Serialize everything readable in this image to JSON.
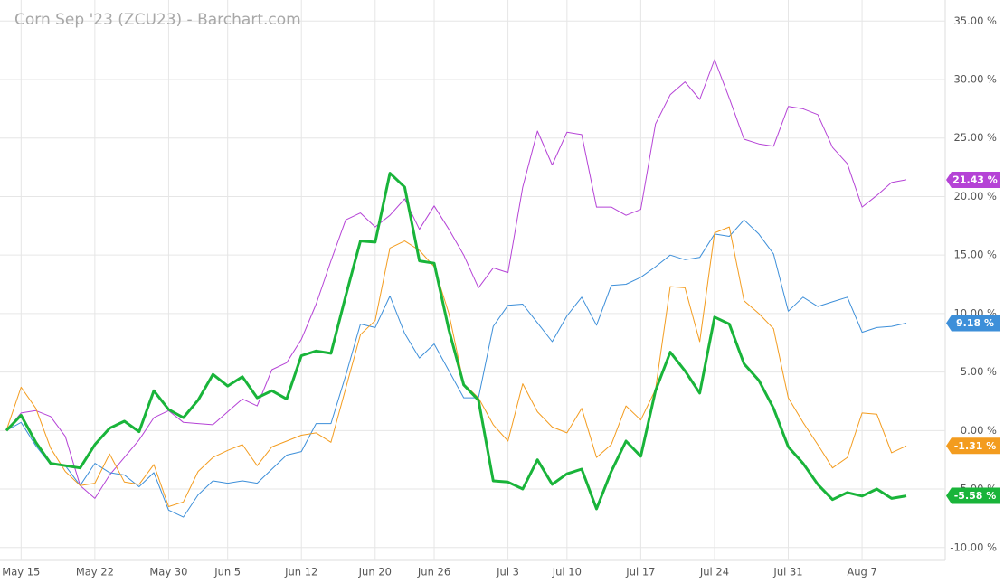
{
  "chart_data": {
    "type": "line",
    "title": "Corn Sep '23 (ZCU23) - Barchart.com",
    "categories": [
      null,
      "May 15",
      null,
      null,
      null,
      null,
      "May 22",
      null,
      null,
      null,
      null,
      "May 30",
      null,
      null,
      null,
      "Jun 5",
      null,
      null,
      null,
      null,
      "Jun 12",
      null,
      null,
      null,
      null,
      "Jun 20",
      null,
      null,
      null,
      "Jun 26",
      null,
      null,
      null,
      null,
      "Jul 3",
      null,
      null,
      null,
      "Jul 10",
      null,
      null,
      null,
      null,
      "Jul 17",
      null,
      null,
      null,
      null,
      "Jul 24",
      null,
      null,
      null,
      null,
      "Jul 31",
      null,
      null,
      null,
      null,
      "Aug 7",
      null,
      null,
      null
    ],
    "series": [
      {
        "color": "#b543d6",
        "line_width": 1,
        "values": [
          0,
          1.5,
          1.7,
          1.2,
          -0.5,
          -4.7,
          -5.8,
          -3.8,
          -2.3,
          -0.8,
          1.1,
          1.7,
          0.7,
          0.6,
          0.5,
          1.6,
          2.7,
          2.1,
          5.2,
          5.8,
          7.8,
          10.8,
          14.5,
          18.0,
          18.6,
          17.4,
          18.4,
          19.8,
          17.2,
          19.2,
          17.2,
          15.0,
          12.2,
          13.9,
          13.5,
          20.8,
          25.6,
          22.7,
          25.5,
          25.3,
          19.1,
          19.1,
          18.4,
          18.9,
          26.2,
          28.7,
          29.8,
          28.3,
          31.7,
          28.4,
          24.9,
          24.5,
          24.3,
          27.7,
          27.5,
          27.0,
          24.2,
          22.8,
          19.1,
          20.1,
          21.2,
          21.43
        ],
        "value_labels": [
          null,
          null,
          null,
          null,
          null,
          null,
          null,
          null,
          null,
          null,
          null,
          null,
          null,
          null,
          null,
          null,
          null,
          null,
          null,
          null,
          null,
          null,
          null,
          null,
          null,
          null,
          null,
          null,
          null,
          null,
          null,
          null,
          null,
          null,
          null,
          null,
          null,
          null,
          null,
          null,
          null,
          null,
          null,
          null,
          null,
          null,
          null,
          null,
          null,
          null,
          null,
          null,
          null,
          null,
          null,
          null,
          null,
          null,
          null,
          null,
          null,
          "21.43 %"
        ]
      },
      {
        "color": "#3d8fd9",
        "line_width": 1,
        "values": [
          0,
          0.7,
          -1.3,
          -2.9,
          -3.0,
          -4.7,
          -2.8,
          -3.6,
          -3.8,
          -4.8,
          -3.6,
          -6.8,
          -7.4,
          -5.5,
          -4.3,
          -4.5,
          -4.3,
          -4.5,
          -3.3,
          -2.1,
          -1.8,
          0.6,
          0.6,
          4.7,
          9.1,
          8.8,
          11.5,
          8.3,
          6.2,
          7.4,
          5.1,
          2.8,
          2.8,
          8.9,
          10.7,
          10.8,
          9.2,
          7.6,
          9.8,
          11.4,
          9.0,
          12.4,
          12.5,
          13.1,
          14.0,
          15.0,
          14.6,
          14.8,
          16.8,
          16.6,
          18.0,
          16.8,
          15.1,
          10.2,
          11.4,
          10.6,
          11.0,
          11.4,
          8.4,
          8.8,
          8.9,
          9.18
        ],
        "value_labels": [
          null,
          null,
          null,
          null,
          null,
          null,
          null,
          null,
          null,
          null,
          null,
          null,
          null,
          null,
          null,
          null,
          null,
          null,
          null,
          null,
          null,
          null,
          null,
          null,
          null,
          null,
          null,
          null,
          null,
          null,
          null,
          null,
          null,
          null,
          null,
          null,
          null,
          null,
          null,
          null,
          null,
          null,
          null,
          null,
          null,
          null,
          null,
          null,
          null,
          null,
          null,
          null,
          null,
          null,
          null,
          null,
          null,
          null,
          null,
          null,
          null,
          "9.18 %"
        ]
      },
      {
        "color": "#f39c1f",
        "line_width": 1,
        "values": [
          0,
          3.7,
          1.9,
          -1.5,
          -3.5,
          -4.7,
          -4.5,
          -2.0,
          -4.4,
          -4.6,
          -2.9,
          -6.5,
          -6.1,
          -3.5,
          -2.3,
          -1.7,
          -1.2,
          -3.0,
          -1.4,
          -0.9,
          -0.4,
          -0.2,
          -1.0,
          3.6,
          8.2,
          9.4,
          15.6,
          16.2,
          15.4,
          14.0,
          10.0,
          4.0,
          2.8,
          0.5,
          -0.9,
          4.0,
          1.6,
          0.3,
          -0.2,
          1.9,
          -2.3,
          -1.2,
          2.1,
          0.9,
          3.5,
          12.3,
          12.2,
          7.6,
          16.9,
          17.4,
          11.1,
          10.0,
          8.7,
          2.8,
          0.7,
          -1.2,
          -3.2,
          -2.3,
          1.5,
          1.4,
          -1.9,
          -1.31
        ],
        "value_labels": [
          null,
          null,
          null,
          null,
          null,
          null,
          null,
          null,
          null,
          null,
          null,
          null,
          null,
          null,
          null,
          null,
          null,
          null,
          null,
          null,
          null,
          null,
          null,
          null,
          null,
          null,
          null,
          null,
          null,
          null,
          null,
          null,
          null,
          null,
          null,
          null,
          null,
          null,
          null,
          null,
          null,
          null,
          null,
          null,
          null,
          null,
          null,
          null,
          null,
          null,
          null,
          null,
          null,
          null,
          null,
          null,
          null,
          null,
          null,
          null,
          null,
          "-1.31 %"
        ]
      },
      {
        "color": "#19b43a",
        "line_width": 3,
        "values": [
          0,
          1.3,
          -1.0,
          -2.8,
          -3.0,
          -3.2,
          -1.2,
          0.2,
          0.8,
          -0.1,
          3.4,
          1.8,
          1.1,
          2.6,
          4.8,
          3.8,
          4.6,
          2.8,
          3.4,
          2.7,
          6.4,
          6.8,
          6.6,
          11.5,
          16.2,
          16.1,
          22.0,
          20.8,
          14.5,
          14.3,
          8.6,
          3.9,
          2.6,
          -4.3,
          -4.4,
          -5.0,
          -2.5,
          -4.6,
          -3.7,
          -3.3,
          -6.7,
          -3.5,
          -0.9,
          -2.2,
          3.4,
          6.7,
          5.1,
          3.2,
          9.7,
          9.1,
          5.7,
          4.3,
          1.9,
          -1.4,
          -2.8,
          -4.6,
          -5.9,
          -5.3,
          -5.6,
          -5.0,
          -5.8,
          -5.58
        ],
        "value_labels": [
          null,
          null,
          null,
          null,
          null,
          null,
          null,
          null,
          null,
          null,
          null,
          null,
          null,
          null,
          null,
          null,
          null,
          null,
          null,
          null,
          null,
          null,
          null,
          null,
          null,
          null,
          null,
          null,
          null,
          null,
          null,
          null,
          null,
          null,
          null,
          null,
          null,
          null,
          null,
          null,
          null,
          null,
          null,
          null,
          null,
          null,
          null,
          null,
          null,
          null,
          null,
          null,
          null,
          null,
          null,
          null,
          null,
          null,
          null,
          null,
          null,
          "-5.58 %"
        ]
      }
    ],
    "ylim": [
      -11.1,
      36.8
    ],
    "yticks": [
      {
        "value": 35,
        "label": "35.00 %"
      },
      {
        "value": 30,
        "label": "30.00 %"
      },
      {
        "value": 25,
        "label": "25.00 %"
      },
      {
        "value": 20,
        "label": "20.00 %"
      },
      {
        "value": 15,
        "label": "15.00 %"
      },
      {
        "value": 10,
        "label": "10.00 %"
      },
      {
        "value": 5,
        "label": "5.00 %"
      },
      {
        "value": 0,
        "label": "0.00 %"
      },
      {
        "value": -5,
        "label": "-5.00 %"
      },
      {
        "value": -10,
        "label": "-10.00 %"
      }
    ],
    "grid": true
  }
}
